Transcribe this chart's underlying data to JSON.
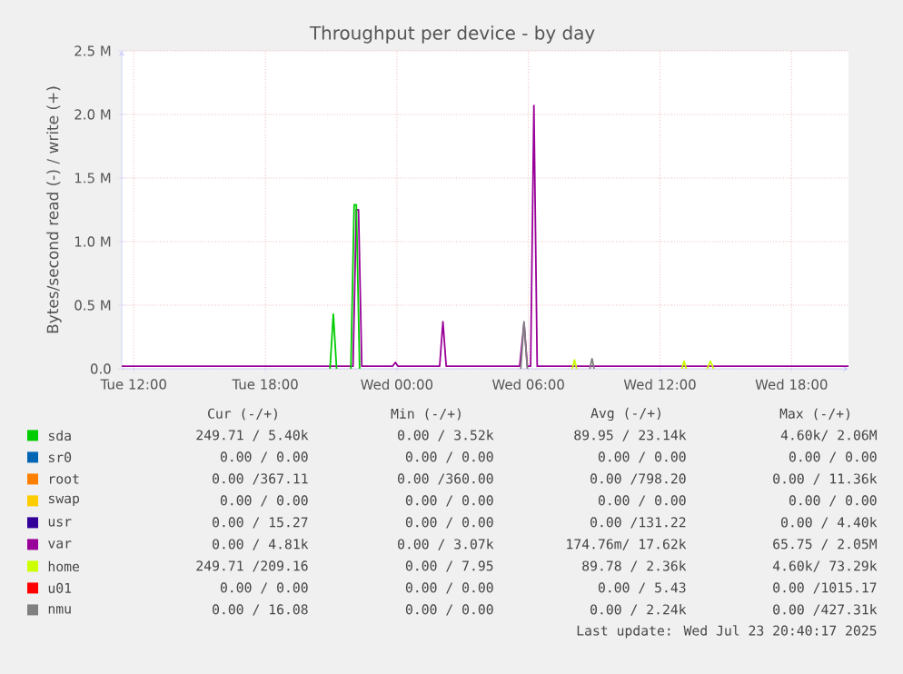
{
  "chart_data": {
    "type": "line",
    "title": "Throughput per device - by day",
    "ylabel": "Bytes/second read (-) / write (+)",
    "xlim": [
      "2025-07-22T11:27",
      "2025-07-23T20:36"
    ],
    "ylim": [
      0,
      2500000
    ],
    "xticks": [
      {
        "value": "2025-07-22T12:00",
        "label": "Tue 12:00"
      },
      {
        "value": "2025-07-22T18:00",
        "label": "Tue 18:00"
      },
      {
        "value": "2025-07-23T00:00",
        "label": "Wed 00:00"
      },
      {
        "value": "2025-07-23T06:00",
        "label": "Wed 06:00"
      },
      {
        "value": "2025-07-23T12:00",
        "label": "Wed 12:00"
      },
      {
        "value": "2025-07-23T18:00",
        "label": "Wed 18:00"
      }
    ],
    "yticks": [
      {
        "value": 0,
        "label": "0.0"
      },
      {
        "value": 500000,
        "label": "0.5 M"
      },
      {
        "value": 1000000,
        "label": "1.0 M"
      },
      {
        "value": 1500000,
        "label": "1.5 M"
      },
      {
        "value": 2000000,
        "label": "2.0 M"
      },
      {
        "value": 2500000,
        "label": "2.5 M"
      }
    ],
    "grid": true,
    "legend": "bottom",
    "marker": "none",
    "series": [
      {
        "name": "sda",
        "color": "#00cc00",
        "x": [
          "2025-07-22T20:57",
          "2025-07-22T21:06",
          "2025-07-22T21:15",
          "2025-07-22T21:54",
          "2025-07-22T22:03",
          "2025-07-22T22:09",
          "2025-07-22T22:18"
        ],
        "values": [
          0,
          430000,
          0,
          0,
          1290000,
          1290000,
          0
        ]
      },
      {
        "name": "sr0",
        "color": "#0066b3",
        "values": [
          null
        ]
      },
      {
        "name": "root",
        "color": "#ff8000",
        "values": [
          null
        ]
      },
      {
        "name": "swap",
        "color": "#ffcc00",
        "values": [
          null
        ]
      },
      {
        "name": "usr",
        "color": "#330099",
        "values": [
          null
        ]
      },
      {
        "name": "var",
        "color": "#990099",
        "x": [
          "2025-07-22T11:27",
          "2025-07-22T22:00",
          "2025-07-22T22:09",
          "2025-07-22T22:15",
          "2025-07-22T22:24",
          "2025-07-22T23:48",
          "2025-07-22T23:56",
          "2025-07-23T00:03",
          "2025-07-23T01:57",
          "2025-07-23T02:06",
          "2025-07-23T02:15",
          "2025-07-23T05:36",
          "2025-07-23T05:48",
          "2025-07-23T05:57",
          "2025-07-23T06:06",
          "2025-07-23T06:15",
          "2025-07-23T06:24",
          "2025-07-23T20:36"
        ],
        "values": [
          20000,
          20000,
          1250000,
          1250000,
          20000,
          20000,
          50000,
          20000,
          20000,
          370000,
          20000,
          20000,
          360000,
          20000,
          20000,
          2070000,
          20000,
          20000
        ]
      },
      {
        "name": "home",
        "color": "#ccff00",
        "x": [
          "2025-07-23T08:00",
          "2025-07-23T08:06",
          "2025-07-23T08:12",
          "2025-07-23T13:00",
          "2025-07-23T13:06",
          "2025-07-23T13:12",
          "2025-07-23T14:09",
          "2025-07-23T14:18",
          "2025-07-23T14:27"
        ],
        "values": [
          0,
          70000,
          0,
          0,
          60000,
          0,
          0,
          60000,
          0
        ]
      },
      {
        "name": "u01",
        "color": "#ff0000",
        "values": [
          null
        ]
      },
      {
        "name": "nmu",
        "color": "#808080",
        "x": [
          "2025-07-23T05:39",
          "2025-07-23T05:48",
          "2025-07-23T05:57",
          "2025-07-23T08:48",
          "2025-07-23T08:54",
          "2025-07-23T09:00"
        ],
        "values": [
          0,
          370000,
          0,
          0,
          80000,
          0
        ]
      }
    ],
    "annotations": [
      "Cur (-/+)",
      "Min (-/+)",
      "Avg (-/+)",
      "Max (-/+)",
      "249.71 / 5.40k",
      "0.00 / 3.52k",
      "89.95 / 23.14k",
      "4.60k/ 2.06M",
      "0.00 / 0.00",
      "0.00 / 0.00",
      "0.00 / 0.00",
      "0.00 / 0.00",
      "0.00 /367.11",
      "0.00 /360.00",
      "0.00 /798.20",
      "0.00 / 11.36k",
      "0.00 / 0.00",
      "0.00 / 0.00",
      "0.00 / 0.00",
      "0.00 / 0.00",
      "0.00 / 15.27",
      "0.00 / 0.00",
      "0.00 /131.22",
      "0.00 / 4.40k",
      "0.00 / 4.81k",
      "0.00 / 3.07k",
      "174.76m/ 17.62k",
      "65.75 / 2.05M",
      "249.71 /209.16",
      "0.00 / 7.95",
      "89.78 / 2.36k",
      "4.60k/ 73.29k",
      "0.00 / 0.00",
      "0.00 / 0.00",
      "0.00 / 5.43",
      "0.00 /1015.17",
      "0.00 / 16.08",
      "0.00 / 0.00",
      "0.00 / 2.24k",
      "0.00 /427.31k",
      "Last update: Wed Jul 23 20:40:17 2025"
    ]
  }
}
